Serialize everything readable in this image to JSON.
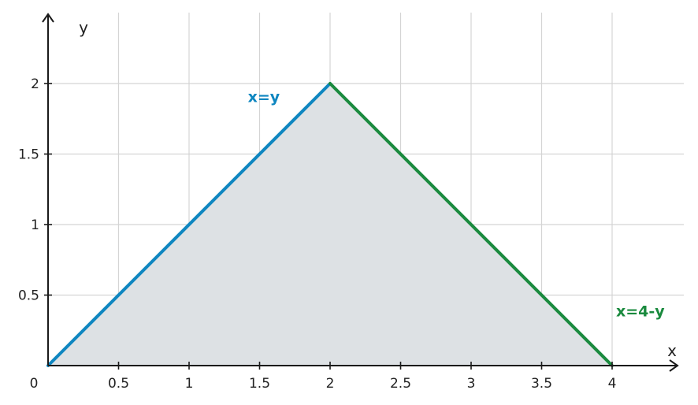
{
  "chart_data": {
    "type": "area",
    "xlabel": "x",
    "ylabel": "y",
    "xlim": [
      0,
      4.5
    ],
    "ylim": [
      0,
      2.5
    ],
    "x_ticks": [
      0.5,
      1,
      1.5,
      2,
      2.5,
      3,
      3.5,
      4
    ],
    "x_tick_labels": [
      "0.5",
      "1",
      "1.5",
      "2",
      "2.5",
      "3",
      "3.5",
      "4"
    ],
    "y_ticks": [
      0.5,
      1,
      1.5,
      2
    ],
    "y_tick_labels": [
      "0.5",
      "1",
      "1.5",
      "2"
    ],
    "origin_label": "0",
    "grid": true,
    "shaded_region": {
      "vertices": [
        [
          0,
          0
        ],
        [
          2,
          2
        ],
        [
          4,
          0
        ]
      ],
      "color": "#dde1e4"
    },
    "series": [
      {
        "name": "x=y",
        "x": [
          0,
          2
        ],
        "y": [
          0,
          2
        ],
        "color": "#0e86c0"
      },
      {
        "name": "x=4-y",
        "x": [
          2,
          4
        ],
        "y": [
          2,
          0
        ],
        "color": "#1a8a3e"
      }
    ],
    "annotations": [
      {
        "text": "x=y",
        "x": 1.53,
        "y": 1.87,
        "color": "#0e86c0"
      },
      {
        "text": "x=4-y",
        "x": 4.2,
        "y": 0.35,
        "color": "#1a8a3e"
      }
    ]
  }
}
